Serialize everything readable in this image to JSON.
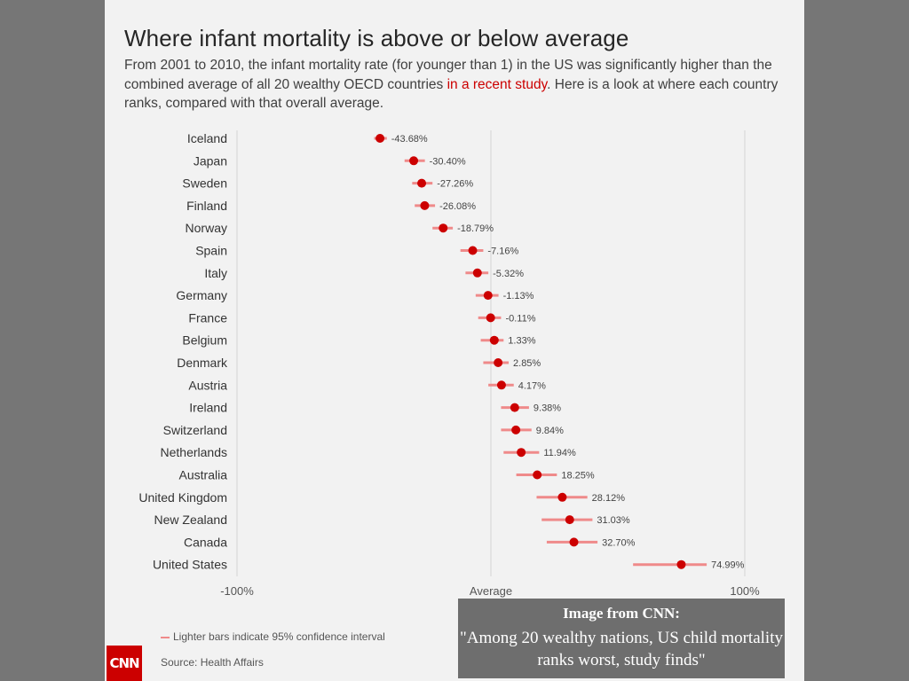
{
  "title": "Where infant mortality is above or below average",
  "subtitle": {
    "before": "From 2001 to 2010, the infant mortality rate (for younger than 1) in the US was significantly higher than the combined average of all 20 wealthy OECD countries ",
    "link": "in a recent study",
    "after": ". Here is a look at where each country ranks, compared with that overall average."
  },
  "colors": {
    "point": "#cc0000",
    "ci_bar": "#ef8a8a",
    "grid": "#d4d4d4"
  },
  "legend_text": "Lighter bars indicate 95% confidence interval",
  "source_text": "Source: Health Affairs",
  "logo_text": "CNN",
  "caption": {
    "title": "Image from CNN:",
    "quote": "\"Among 20 wealthy nations, US child mortality ranks worst, study finds\""
  },
  "chart_data": {
    "type": "scatter",
    "orientation": "horizontal",
    "categories": [
      "Iceland",
      "Japan",
      "Sweden",
      "Finland",
      "Norway",
      "Spain",
      "Italy",
      "Germany",
      "France",
      "Belgium",
      "Denmark",
      "Austria",
      "Ireland",
      "Switzerland",
      "Netherlands",
      "Australia",
      "United Kingdom",
      "New Zealand",
      "Canada",
      "United States"
    ],
    "values": [
      -43.68,
      -30.4,
      -27.26,
      -26.08,
      -18.79,
      -7.16,
      -5.32,
      -1.13,
      -0.11,
      1.33,
      2.85,
      4.17,
      9.38,
      9.84,
      11.94,
      18.25,
      28.12,
      31.03,
      32.7,
      74.99
    ],
    "value_labels": [
      "-43.68%",
      "-30.40%",
      "-27.26%",
      "-26.08%",
      "-18.79%",
      "-7.16%",
      "-5.32%",
      "-1.13%",
      "-0.11%",
      "1.33%",
      "2.85%",
      "4.17%",
      "9.38%",
      "9.84%",
      "11.94%",
      "18.25%",
      "28.12%",
      "31.03%",
      "32.70%",
      "74.99%"
    ],
    "ci_low": [
      -46,
      -34,
      -31,
      -30,
      -23,
      -12,
      -10,
      -6,
      -5,
      -4,
      -3,
      -1,
      4,
      4,
      5,
      10,
      18,
      20,
      22,
      56
    ],
    "ci_high": [
      -41,
      -26,
      -23,
      -22,
      -15,
      -3,
      -1,
      3,
      4,
      5,
      7,
      9,
      15,
      16,
      19,
      26,
      38,
      40,
      42,
      85
    ],
    "x_tick_labels": [
      "-100%",
      "Average",
      "100%"
    ],
    "xlim": [
      -100,
      100
    ],
    "grid": true
  }
}
